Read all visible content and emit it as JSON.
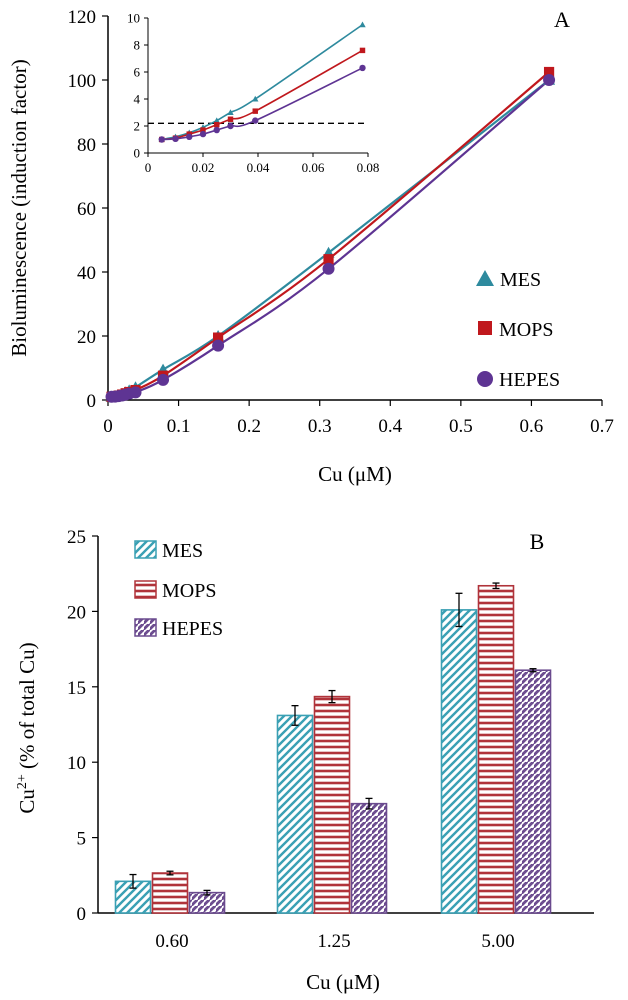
{
  "chart_data": [
    {
      "panel": "A",
      "type": "line",
      "title": "",
      "xlabel": "Cu (μM)",
      "ylabel": "Bioluminescence (induction factor)",
      "xlim": [
        0,
        0.7
      ],
      "ylim": [
        0,
        120
      ],
      "x_ticks": [
        "0",
        "0.1",
        "0.2",
        "0.3",
        "0.4",
        "0.5",
        "0.6",
        "0.7"
      ],
      "y_ticks": [
        "0",
        "20",
        "40",
        "60",
        "80",
        "100",
        "120"
      ],
      "legend_position": "right",
      "series": [
        {
          "name": "MES",
          "marker": "triangle",
          "color": "#2e8a9e",
          "x": [
            0.005,
            0.01,
            0.015,
            0.02,
            0.025,
            0.03,
            0.039,
            0.078,
            0.156,
            0.3125,
            0.625
          ],
          "y": [
            1.0,
            1.2,
            1.5,
            1.9,
            2.4,
            3.0,
            4.0,
            9.5,
            20,
            46,
            100
          ]
        },
        {
          "name": "MOPS",
          "marker": "square",
          "color": "#c0181d",
          "x": [
            0.005,
            0.01,
            0.015,
            0.02,
            0.025,
            0.03,
            0.039,
            0.078,
            0.156,
            0.3125,
            0.625
          ],
          "y": [
            1.0,
            1.1,
            1.4,
            1.7,
            2.1,
            2.5,
            3.1,
            7.6,
            19.5,
            44,
            102.5
          ]
        },
        {
          "name": "HEPES",
          "marker": "circle",
          "color": "#5e3493",
          "x": [
            0.005,
            0.01,
            0.015,
            0.02,
            0.025,
            0.03,
            0.039,
            0.078,
            0.156,
            0.3125,
            0.625
          ],
          "y": [
            1.0,
            1.05,
            1.2,
            1.4,
            1.7,
            2.0,
            2.4,
            6.3,
            17,
            41,
            100
          ]
        }
      ],
      "inset": {
        "xlim": [
          0,
          0.08
        ],
        "ylim": [
          0,
          10
        ],
        "x_ticks": [
          "0",
          "0.02",
          "0.04",
          "0.06",
          "0.08"
        ],
        "y_ticks": [
          "0",
          "2",
          "4",
          "6",
          "8",
          "10"
        ],
        "threshold": 2.2,
        "threshold_style": "dashed"
      }
    },
    {
      "panel": "B",
      "type": "bar",
      "title": "",
      "xlabel": "Cu (μM)",
      "ylabel_base": "Cu",
      "ylabel_sup": "2+",
      "ylabel_rest": " (% of total Cu)",
      "ylim": [
        0,
        25
      ],
      "y_ticks": [
        "0",
        "5",
        "10",
        "15",
        "20",
        "25"
      ],
      "categories": [
        "0.60",
        "1.25",
        "5.00"
      ],
      "legend_position": "top-left",
      "series": [
        {
          "name": "MES",
          "pattern": "diagonal-down",
          "color": "#3aa0b4",
          "values": [
            2.1,
            13.1,
            20.1
          ],
          "errors": [
            0.45,
            0.65,
            1.1
          ]
        },
        {
          "name": "MOPS",
          "pattern": "horizontal",
          "color": "#b0333a",
          "values": [
            2.65,
            14.35,
            21.7
          ],
          "errors": [
            0.12,
            0.4,
            0.18
          ]
        },
        {
          "name": "HEPES",
          "pattern": "diagonal-up",
          "color": "#6a4a8e",
          "values": [
            1.35,
            7.25,
            16.1
          ],
          "errors": [
            0.15,
            0.35,
            0.1
          ]
        }
      ]
    }
  ]
}
